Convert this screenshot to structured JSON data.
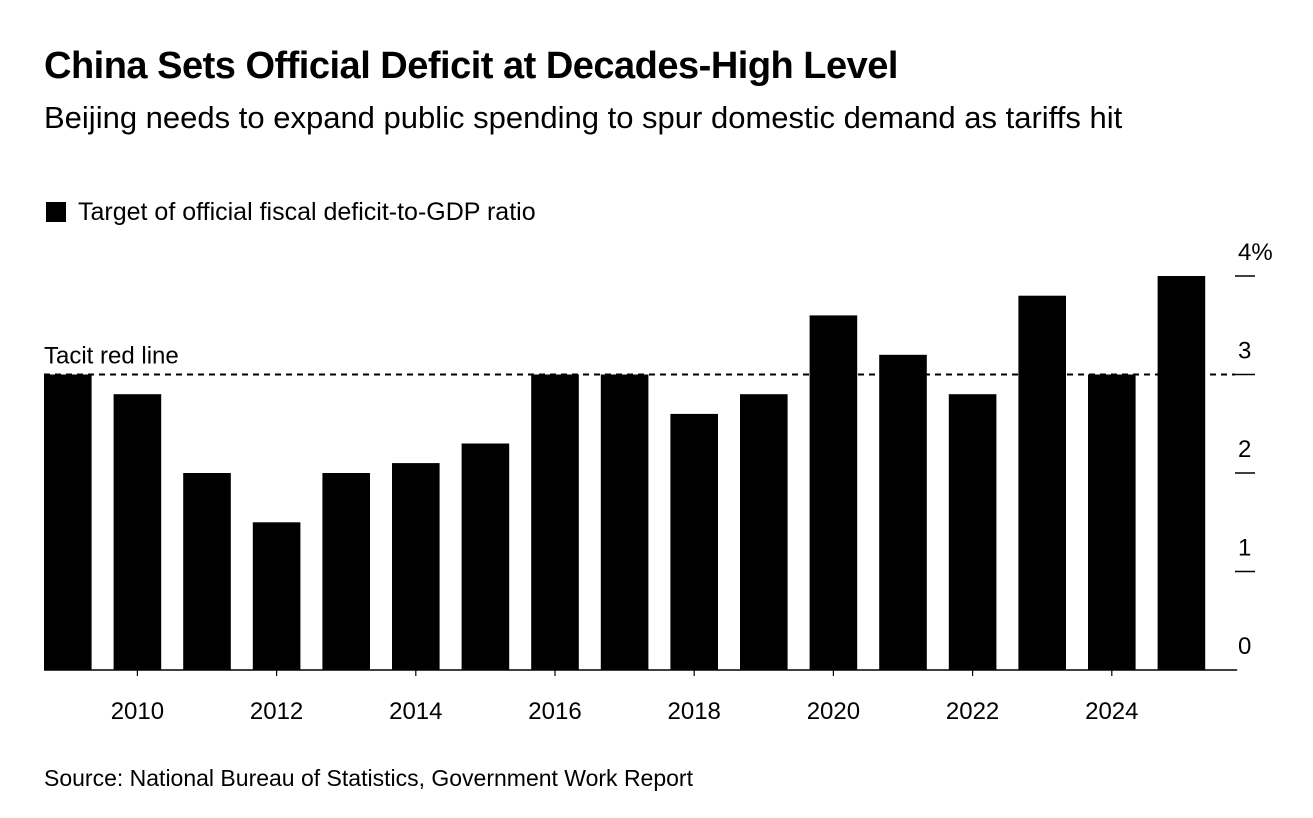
{
  "header": {
    "title": "China Sets Official Deficit at Decades-High Level",
    "subtitle": "Beijing needs to expand public spending to spur domestic demand as tariffs hit"
  },
  "legend": {
    "label": "Target of official fiscal deficit-to-GDP ratio",
    "color": "#000000"
  },
  "footer": {
    "source": "Source: National Bureau of Statistics, Government Work Report"
  },
  "chart_data": {
    "type": "bar",
    "categories": [
      "2009",
      "2010",
      "2011",
      "2012",
      "2013",
      "2014",
      "2015",
      "2016",
      "2017",
      "2018",
      "2019",
      "2020",
      "2021",
      "2022",
      "2023",
      "2024",
      "2025"
    ],
    "series": [
      {
        "name": "Target of official fiscal deficit-to-GDP ratio",
        "values": [
          3.0,
          2.8,
          2.0,
          1.5,
          2.0,
          2.1,
          2.3,
          3.0,
          3.0,
          2.6,
          2.8,
          3.6,
          3.2,
          2.8,
          3.8,
          3.0,
          4.0
        ],
        "color": "#000000"
      }
    ],
    "x_tick_labels": [
      "2010",
      "2012",
      "2014",
      "2016",
      "2018",
      "2020",
      "2022",
      "2024"
    ],
    "y_tick_labels": [
      "0",
      "1",
      "2",
      "3",
      "4%"
    ],
    "y_ticks": [
      0,
      1,
      2,
      3,
      4
    ],
    "ylim": [
      0,
      4
    ],
    "y_axis_position": "right",
    "grid": false,
    "legend_position": "top-left",
    "reference_line": {
      "value": 3,
      "label": "Tacit red line",
      "style": "dashed"
    }
  }
}
